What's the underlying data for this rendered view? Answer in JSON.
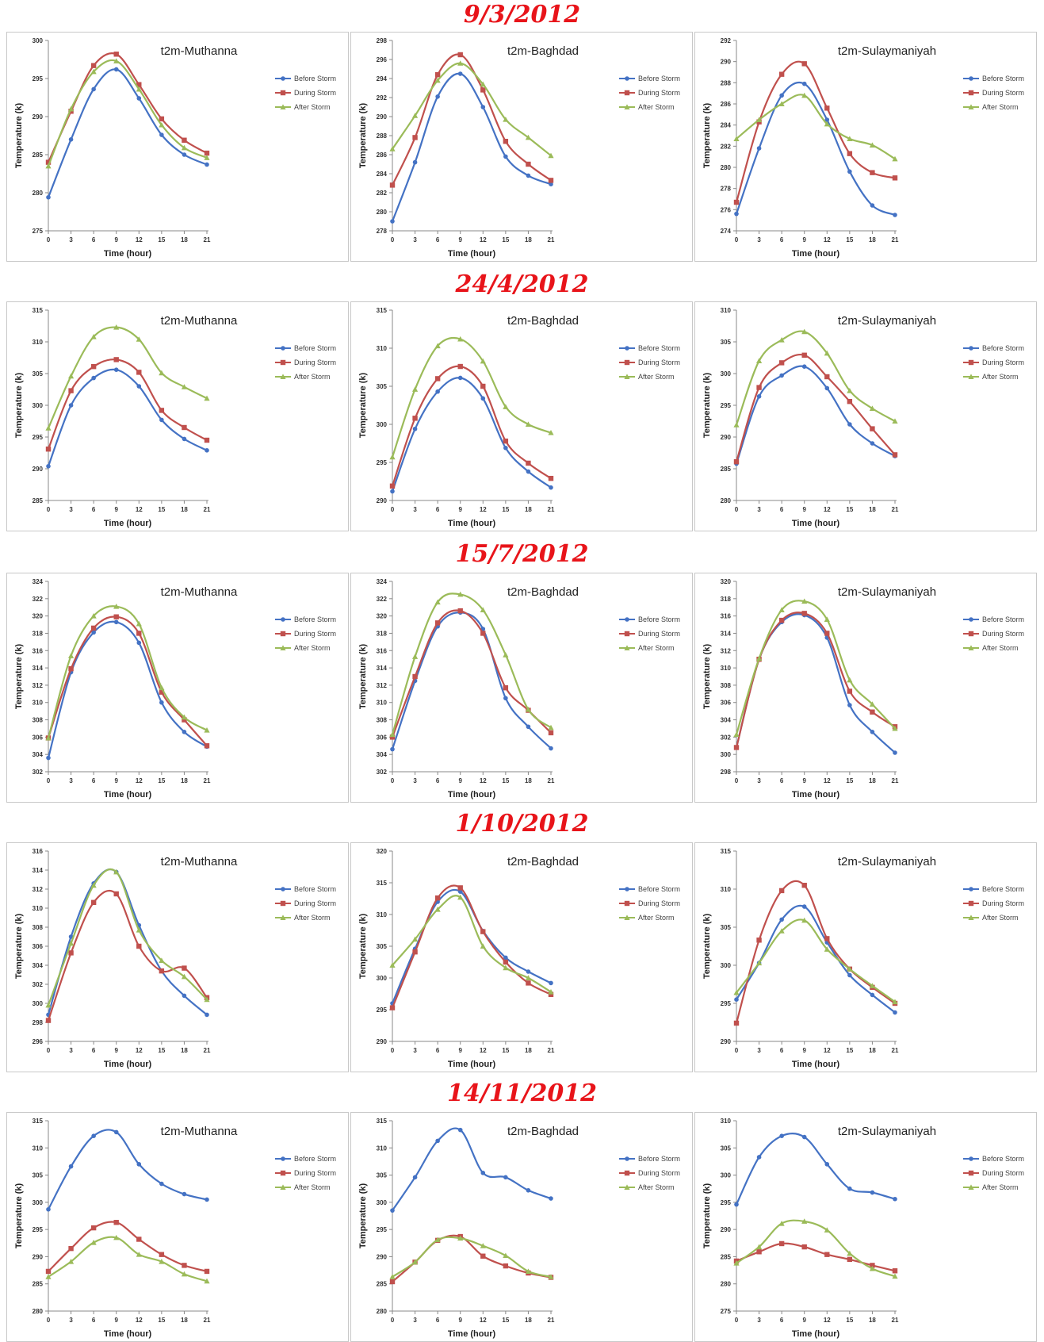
{
  "x_label": "Time (hour)",
  "y_label": "Temperature (k)",
  "legend": [
    "Before Storm",
    "During Storm",
    "After Storm"
  ],
  "colors": {
    "before": "#4472c4",
    "during": "#c0504d",
    "after": "#9bbb59",
    "heading": "#e8141a"
  },
  "chart_data": [
    {
      "date": "9/3/2012",
      "charts": [
        {
          "type": "line",
          "title": "t2m-Muthanna",
          "x": [
            0,
            3,
            6,
            9,
            12,
            15,
            18,
            21
          ],
          "ylim": [
            275,
            300
          ],
          "ystep": 5,
          "series": [
            {
              "name": "Before Storm",
              "values": [
                279.4,
                287.0,
                293.6,
                296.2,
                292.4,
                287.6,
                285.0,
                283.7
              ]
            },
            {
              "name": "During Storm",
              "values": [
                284.0,
                290.7,
                296.7,
                298.2,
                294.2,
                289.7,
                286.9,
                285.2
              ]
            },
            {
              "name": "After Storm",
              "values": [
                283.5,
                291.0,
                295.9,
                297.3,
                293.6,
                288.9,
                285.9,
                284.6
              ]
            }
          ]
        },
        {
          "type": "line",
          "title": "t2m-Baghdad",
          "x": [
            0,
            3,
            6,
            9,
            12,
            15,
            18,
            21
          ],
          "ylim": [
            278,
            298
          ],
          "ystep": 2,
          "series": [
            {
              "name": "Before Storm",
              "values": [
                279.0,
                285.2,
                292.1,
                294.5,
                291.0,
                285.8,
                283.8,
                282.9
              ]
            },
            {
              "name": "During Storm",
              "values": [
                282.8,
                287.8,
                294.4,
                296.5,
                292.8,
                287.4,
                285.0,
                283.3
              ]
            },
            {
              "name": "After Storm",
              "values": [
                286.6,
                290.1,
                293.8,
                295.6,
                293.4,
                289.7,
                287.8,
                285.9
              ]
            }
          ]
        },
        {
          "type": "line",
          "title": "t2m-Sulaymaniyah",
          "x": [
            0,
            3,
            6,
            9,
            12,
            15,
            18,
            21
          ],
          "ylim": [
            274,
            292
          ],
          "ystep": 2,
          "series": [
            {
              "name": "Before Storm",
              "values": [
                275.6,
                281.8,
                286.8,
                287.9,
                284.5,
                279.6,
                276.4,
                275.5
              ]
            },
            {
              "name": "During Storm",
              "values": [
                276.7,
                284.3,
                288.8,
                289.8,
                285.6,
                281.3,
                279.5,
                279.0
              ]
            },
            {
              "name": "After Storm",
              "values": [
                282.7,
                284.5,
                286.0,
                286.8,
                284.1,
                282.7,
                282.1,
                280.8
              ]
            }
          ]
        }
      ]
    },
    {
      "date": "24/4/2012",
      "charts": [
        {
          "type": "line",
          "title": "t2m-Muthanna",
          "x": [
            0,
            3,
            6,
            9,
            12,
            15,
            18,
            21
          ],
          "ylim": [
            285,
            315
          ],
          "ystep": 5,
          "series": [
            {
              "name": "Before Storm",
              "values": [
                290.4,
                300.0,
                304.3,
                305.6,
                303.0,
                297.7,
                294.7,
                292.9
              ]
            },
            {
              "name": "During Storm",
              "values": [
                293.1,
                302.3,
                306.1,
                307.2,
                305.2,
                299.2,
                296.5,
                294.5
              ]
            },
            {
              "name": "After Storm",
              "values": [
                296.4,
                304.6,
                310.8,
                312.3,
                310.4,
                305.1,
                302.9,
                301.1
              ]
            }
          ]
        },
        {
          "type": "line",
          "title": "t2m-Baghdad",
          "x": [
            0,
            3,
            6,
            9,
            12,
            15,
            18,
            21
          ],
          "ylim": [
            290,
            315
          ],
          "ystep": 5,
          "series": [
            {
              "name": "Before Storm",
              "values": [
                291.2,
                299.4,
                304.3,
                306.1,
                303.4,
                296.9,
                293.8,
                291.7
              ]
            },
            {
              "name": "During Storm",
              "values": [
                291.9,
                300.8,
                306.0,
                307.6,
                305.0,
                297.8,
                294.9,
                292.9
              ]
            },
            {
              "name": "After Storm",
              "values": [
                295.7,
                304.6,
                310.3,
                311.2,
                308.3,
                302.3,
                300.0,
                298.9
              ]
            }
          ]
        },
        {
          "type": "line",
          "title": "t2m-Sulaymaniyah",
          "x": [
            0,
            3,
            6,
            9,
            12,
            15,
            18,
            21
          ],
          "ylim": [
            280,
            310
          ],
          "ystep": 5,
          "series": [
            {
              "name": "Before Storm",
              "values": [
                285.8,
                296.4,
                299.7,
                301.1,
                297.7,
                292.0,
                289.0,
                287.0
              ]
            },
            {
              "name": "During Storm",
              "values": [
                286.1,
                297.8,
                301.7,
                302.9,
                299.5,
                295.6,
                291.3,
                287.2
              ]
            },
            {
              "name": "After Storm",
              "values": [
                291.9,
                302.0,
                305.3,
                306.6,
                303.2,
                297.3,
                294.5,
                292.5
              ]
            }
          ]
        }
      ]
    },
    {
      "date": "15/7/2012",
      "charts": [
        {
          "type": "line",
          "title": "t2m-Muthanna",
          "x": [
            0,
            3,
            6,
            9,
            12,
            15,
            18,
            21
          ],
          "ylim": [
            302,
            324
          ],
          "ystep": 2,
          "series": [
            {
              "name": "Before Storm",
              "values": [
                303.6,
                313.5,
                318.1,
                319.3,
                316.9,
                310.0,
                306.6,
                304.9
              ]
            },
            {
              "name": "During Storm",
              "values": [
                305.9,
                313.9,
                318.6,
                319.9,
                318.0,
                311.2,
                308.0,
                305.0
              ]
            },
            {
              "name": "After Storm",
              "values": [
                305.9,
                315.4,
                320.0,
                321.1,
                319.1,
                311.7,
                308.3,
                306.8
              ]
            }
          ]
        },
        {
          "type": "line",
          "title": "t2m-Baghdad",
          "x": [
            0,
            3,
            6,
            9,
            12,
            15,
            18,
            21
          ],
          "ylim": [
            302,
            324
          ],
          "ystep": 2,
          "series": [
            {
              "name": "Before Storm",
              "values": [
                304.6,
                312.5,
                318.8,
                320.4,
                318.5,
                310.5,
                307.2,
                304.7
              ]
            },
            {
              "name": "During Storm",
              "values": [
                306.0,
                313.0,
                319.2,
                320.6,
                318.0,
                311.7,
                309.1,
                306.5
              ]
            },
            {
              "name": "After Storm",
              "values": [
                306.3,
                315.3,
                321.6,
                322.5,
                320.7,
                315.5,
                309.2,
                307.1
              ]
            }
          ]
        },
        {
          "type": "line",
          "title": "t2m-Sulaymaniyah",
          "x": [
            0,
            3,
            6,
            9,
            12,
            15,
            18,
            21
          ],
          "ylim": [
            298,
            320
          ],
          "ystep": 2,
          "series": [
            {
              "name": "Before Storm",
              "values": [
                300.8,
                311.0,
                315.3,
                316.1,
                313.5,
                305.7,
                302.6,
                300.2
              ]
            },
            {
              "name": "During Storm",
              "values": [
                300.8,
                311.0,
                315.5,
                316.3,
                314.0,
                307.3,
                304.9,
                303.2
              ]
            },
            {
              "name": "After Storm",
              "values": [
                302.3,
                311.1,
                316.7,
                317.7,
                315.6,
                308.6,
                305.8,
                303.0
              ]
            }
          ]
        }
      ]
    },
    {
      "date": "1/10/2012",
      "charts": [
        {
          "type": "line",
          "title": "t2m-Muthanna",
          "x": [
            0,
            3,
            6,
            9,
            12,
            15,
            18,
            21
          ],
          "ylim": [
            296,
            316
          ],
          "ystep": 2,
          "series": [
            {
              "name": "Before Storm",
              "values": [
                298.8,
                307.0,
                312.6,
                313.8,
                308.2,
                303.4,
                300.8,
                298.8
              ]
            },
            {
              "name": "During Storm",
              "values": [
                298.2,
                305.3,
                310.6,
                311.5,
                306.0,
                303.4,
                303.7,
                300.6
              ]
            },
            {
              "name": "After Storm",
              "values": [
                299.8,
                306.3,
                312.4,
                313.8,
                307.7,
                304.5,
                302.8,
                300.4
              ]
            }
          ]
        },
        {
          "type": "line",
          "title": "t2m-Baghdad",
          "x": [
            0,
            3,
            6,
            9,
            12,
            15,
            18,
            21
          ],
          "ylim": [
            290,
            320
          ],
          "ystep": 5,
          "series": [
            {
              "name": "Before Storm",
              "values": [
                296.0,
                304.6,
                312.0,
                313.6,
                307.4,
                303.2,
                301.0,
                299.2
              ]
            },
            {
              "name": "During Storm",
              "values": [
                295.3,
                304.1,
                312.6,
                314.2,
                307.3,
                302.5,
                299.2,
                297.4
              ]
            },
            {
              "name": "After Storm",
              "values": [
                302.0,
                306.1,
                310.8,
                312.7,
                305.0,
                301.6,
                300.0,
                297.8
              ]
            }
          ]
        },
        {
          "type": "line",
          "title": "t2m-Sulaymaniyah",
          "x": [
            0,
            3,
            6,
            9,
            12,
            15,
            18,
            21
          ],
          "ylim": [
            290,
            315
          ],
          "ystep": 5,
          "series": [
            {
              "name": "Before Storm",
              "values": [
                295.5,
                300.3,
                306.0,
                307.7,
                303.0,
                298.7,
                296.1,
                293.8
              ]
            },
            {
              "name": "During Storm",
              "values": [
                292.4,
                303.3,
                309.8,
                310.5,
                303.5,
                299.5,
                297.1,
                295.0
              ]
            },
            {
              "name": "After Storm",
              "values": [
                296.4,
                300.3,
                304.5,
                305.9,
                302.1,
                299.5,
                297.3,
                295.2
              ]
            }
          ]
        }
      ]
    },
    {
      "date": "14/11/2012",
      "charts": [
        {
          "type": "line",
          "title": "t2m-Muthanna",
          "x": [
            0,
            3,
            6,
            9,
            12,
            15,
            18,
            21
          ],
          "ylim": [
            280,
            315
          ],
          "ystep": 5,
          "series": [
            {
              "name": "Before Storm",
              "values": [
                298.7,
                306.6,
                312.2,
                312.9,
                307.0,
                303.4,
                301.5,
                300.5
              ]
            },
            {
              "name": "During Storm",
              "values": [
                287.3,
                291.5,
                295.3,
                296.3,
                293.2,
                290.4,
                288.4,
                287.3
              ]
            },
            {
              "name": "After Storm",
              "values": [
                286.3,
                289.1,
                292.6,
                293.5,
                290.4,
                289.1,
                286.8,
                285.5
              ]
            }
          ]
        },
        {
          "type": "line",
          "title": "t2m-Baghdad",
          "x": [
            0,
            3,
            6,
            9,
            12,
            15,
            18,
            21
          ],
          "ylim": [
            280,
            315
          ],
          "ystep": 5,
          "series": [
            {
              "name": "Before Storm",
              "values": [
                298.5,
                304.6,
                311.3,
                313.3,
                305.4,
                304.6,
                302.2,
                300.7
              ]
            },
            {
              "name": "During Storm",
              "values": [
                285.4,
                289.0,
                293.0,
                293.7,
                290.1,
                288.3,
                287.0,
                286.2
              ]
            },
            {
              "name": "After Storm",
              "values": [
                286.3,
                289.0,
                293.1,
                293.4,
                292.0,
                290.2,
                287.3,
                286.3
              ]
            }
          ]
        },
        {
          "type": "line",
          "title": "t2m-Sulaymaniyah",
          "x": [
            0,
            3,
            6,
            9,
            12,
            15,
            18,
            21
          ],
          "ylim": [
            275,
            310
          ],
          "ystep": 5,
          "series": [
            {
              "name": "Before Storm",
              "values": [
                294.6,
                303.3,
                307.2,
                307.0,
                302.0,
                297.5,
                296.8,
                295.6
              ]
            },
            {
              "name": "During Storm",
              "values": [
                284.2,
                285.9,
                287.4,
                286.8,
                285.4,
                284.5,
                283.4,
                282.4
              ]
            },
            {
              "name": "After Storm",
              "values": [
                283.8,
                286.8,
                291.1,
                291.5,
                289.9,
                285.6,
                282.8,
                281.4
              ]
            }
          ]
        }
      ]
    }
  ]
}
